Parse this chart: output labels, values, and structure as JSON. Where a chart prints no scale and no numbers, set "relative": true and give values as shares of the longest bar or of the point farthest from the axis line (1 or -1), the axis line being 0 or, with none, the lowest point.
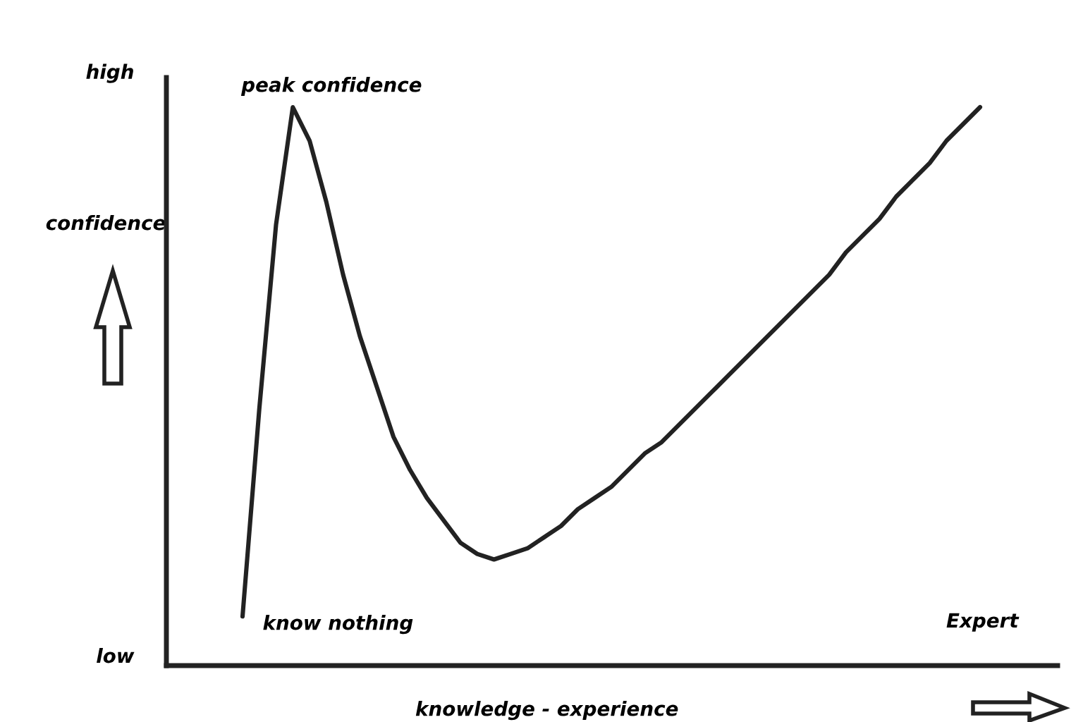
{
  "chart_data": {
    "type": "line",
    "relative": true,
    "xlabel": "knowledge - experience",
    "ylabel": "confidence",
    "color": "#222222",
    "categories": [
      null,
      null,
      null,
      null,
      null,
      null,
      null,
      null,
      null,
      null,
      null,
      null,
      null,
      null,
      null,
      null,
      null,
      null,
      null,
      null,
      null,
      null,
      null,
      null,
      null,
      null,
      null,
      null,
      null,
      null,
      null,
      null,
      null,
      null,
      null,
      null,
      null,
      null,
      null,
      null,
      null,
      null,
      null,
      null,
      null
    ],
    "values": [
      0.088,
      0.46,
      0.79,
      1,
      0.94,
      0.83,
      0.7,
      0.59,
      0.5,
      0.41,
      0.35,
      0.3,
      0.26,
      0.22,
      0.2,
      0.19,
      0.2,
      0.21,
      0.23,
      0.25,
      0.28,
      0.3,
      0.32,
      0.35,
      0.38,
      0.4,
      0.43,
      0.46,
      0.49,
      0.52,
      0.55,
      0.58,
      0.61,
      0.64,
      0.67,
      0.7,
      0.74,
      0.77,
      0.8,
      0.84,
      0.87,
      0.9,
      0.94,
      0.97,
      1.0
    ],
    "annotations": [
      "high",
      "low",
      "peak confidence",
      "know nothing",
      "Expert"
    ],
    "legend": false,
    "marker": "none",
    "line_style": "solid"
  }
}
